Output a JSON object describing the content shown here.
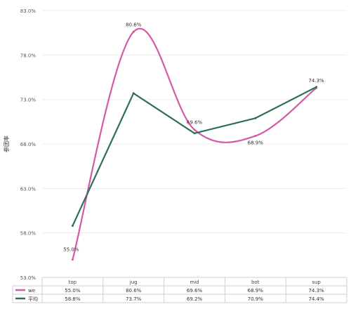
{
  "chart_data": {
    "type": "line",
    "title": "",
    "xlabel": "",
    "ylabel": "参团率",
    "categories": [
      "top",
      "jug",
      "mid",
      "bot",
      "sup"
    ],
    "ylim": [
      53.0,
      83.0
    ],
    "yticks": [
      "53.0%",
      "58.0%",
      "63.0%",
      "68.0%",
      "73.0%",
      "78.0%",
      "83.0%"
    ],
    "grid": true,
    "legend": "data-table-left",
    "series": [
      {
        "name": "we",
        "color": "#d45aa8",
        "smooth": true,
        "values": [
          55.0,
          80.6,
          69.6,
          68.9,
          74.3
        ],
        "labels": [
          "55.0%",
          "80.6%",
          "69.6%",
          "68.9%",
          "74.3%"
        ],
        "data_labels_shown": true
      },
      {
        "name": "平均",
        "color": "#2f6e5a",
        "smooth": false,
        "values": [
          58.8,
          73.7,
          69.2,
          70.9,
          74.4
        ],
        "labels": [
          "58.8%",
          "73.7%",
          "69.2%",
          "70.9%",
          "74.4%"
        ],
        "data_labels_shown": false
      }
    ]
  }
}
